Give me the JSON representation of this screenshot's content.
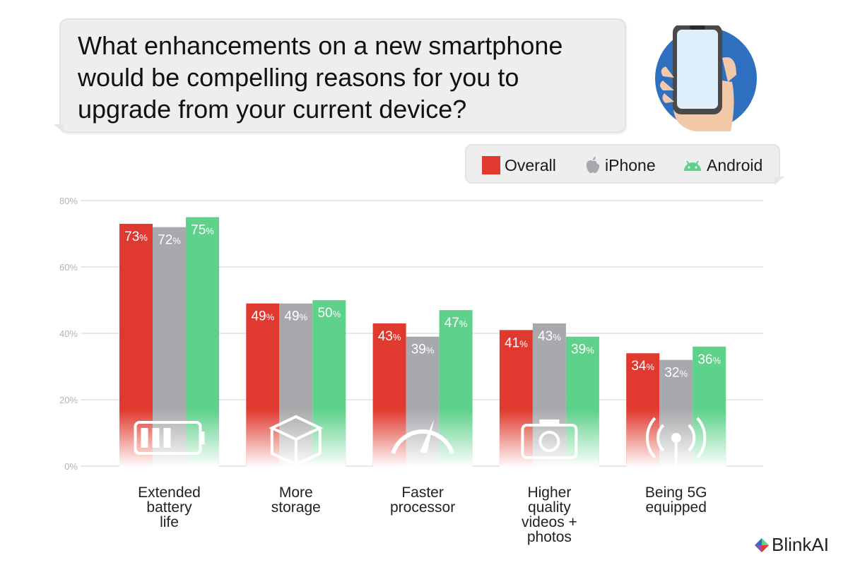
{
  "question": "What enhancements on a new smartphone would be compelling reasons for you to upgrade from your current device?",
  "brand": "BlinkAI",
  "legend": [
    {
      "label": "Overall",
      "icon": "square-swatch",
      "color": "#e03a30"
    },
    {
      "label": "iPhone",
      "icon": "apple-icon",
      "color": "#a7a9ac"
    },
    {
      "label": "Android",
      "icon": "android-icon",
      "color": "#5ed18a"
    }
  ],
  "chart_data": {
    "type": "bar",
    "title": "",
    "xlabel": "",
    "ylabel": "",
    "ylim": [
      0,
      80
    ],
    "yticks": [
      0,
      20,
      40,
      60,
      80
    ],
    "ytick_labels": [
      "0%",
      "20%",
      "40%",
      "60%",
      "80%"
    ],
    "grid": true,
    "legend_position": "top-right",
    "categories": [
      "Extended battery life",
      "More storage",
      "Faster processor",
      "Higher quality videos + photos",
      "Being 5G equipped"
    ],
    "category_label_lines": [
      [
        "Extended",
        "battery",
        "life"
      ],
      [
        "More",
        "storage"
      ],
      [
        "Faster",
        "processor"
      ],
      [
        "Higher",
        "quality",
        "videos +",
        "photos"
      ],
      [
        "Being 5G",
        "equipped"
      ]
    ],
    "category_icons": [
      "battery-icon",
      "storage-box-icon",
      "speedometer-icon",
      "camera-icon",
      "antenna-signal-icon"
    ],
    "series": [
      {
        "name": "Overall",
        "color": "#e03a30",
        "values": [
          73,
          49,
          43,
          41,
          34
        ]
      },
      {
        "name": "iPhone",
        "color": "#a7a9ac",
        "values": [
          72,
          49,
          39,
          43,
          32
        ]
      },
      {
        "name": "Android",
        "color": "#5ed18a",
        "values": [
          75,
          50,
          47,
          39,
          36
        ]
      }
    ],
    "value_suffix": "%"
  }
}
